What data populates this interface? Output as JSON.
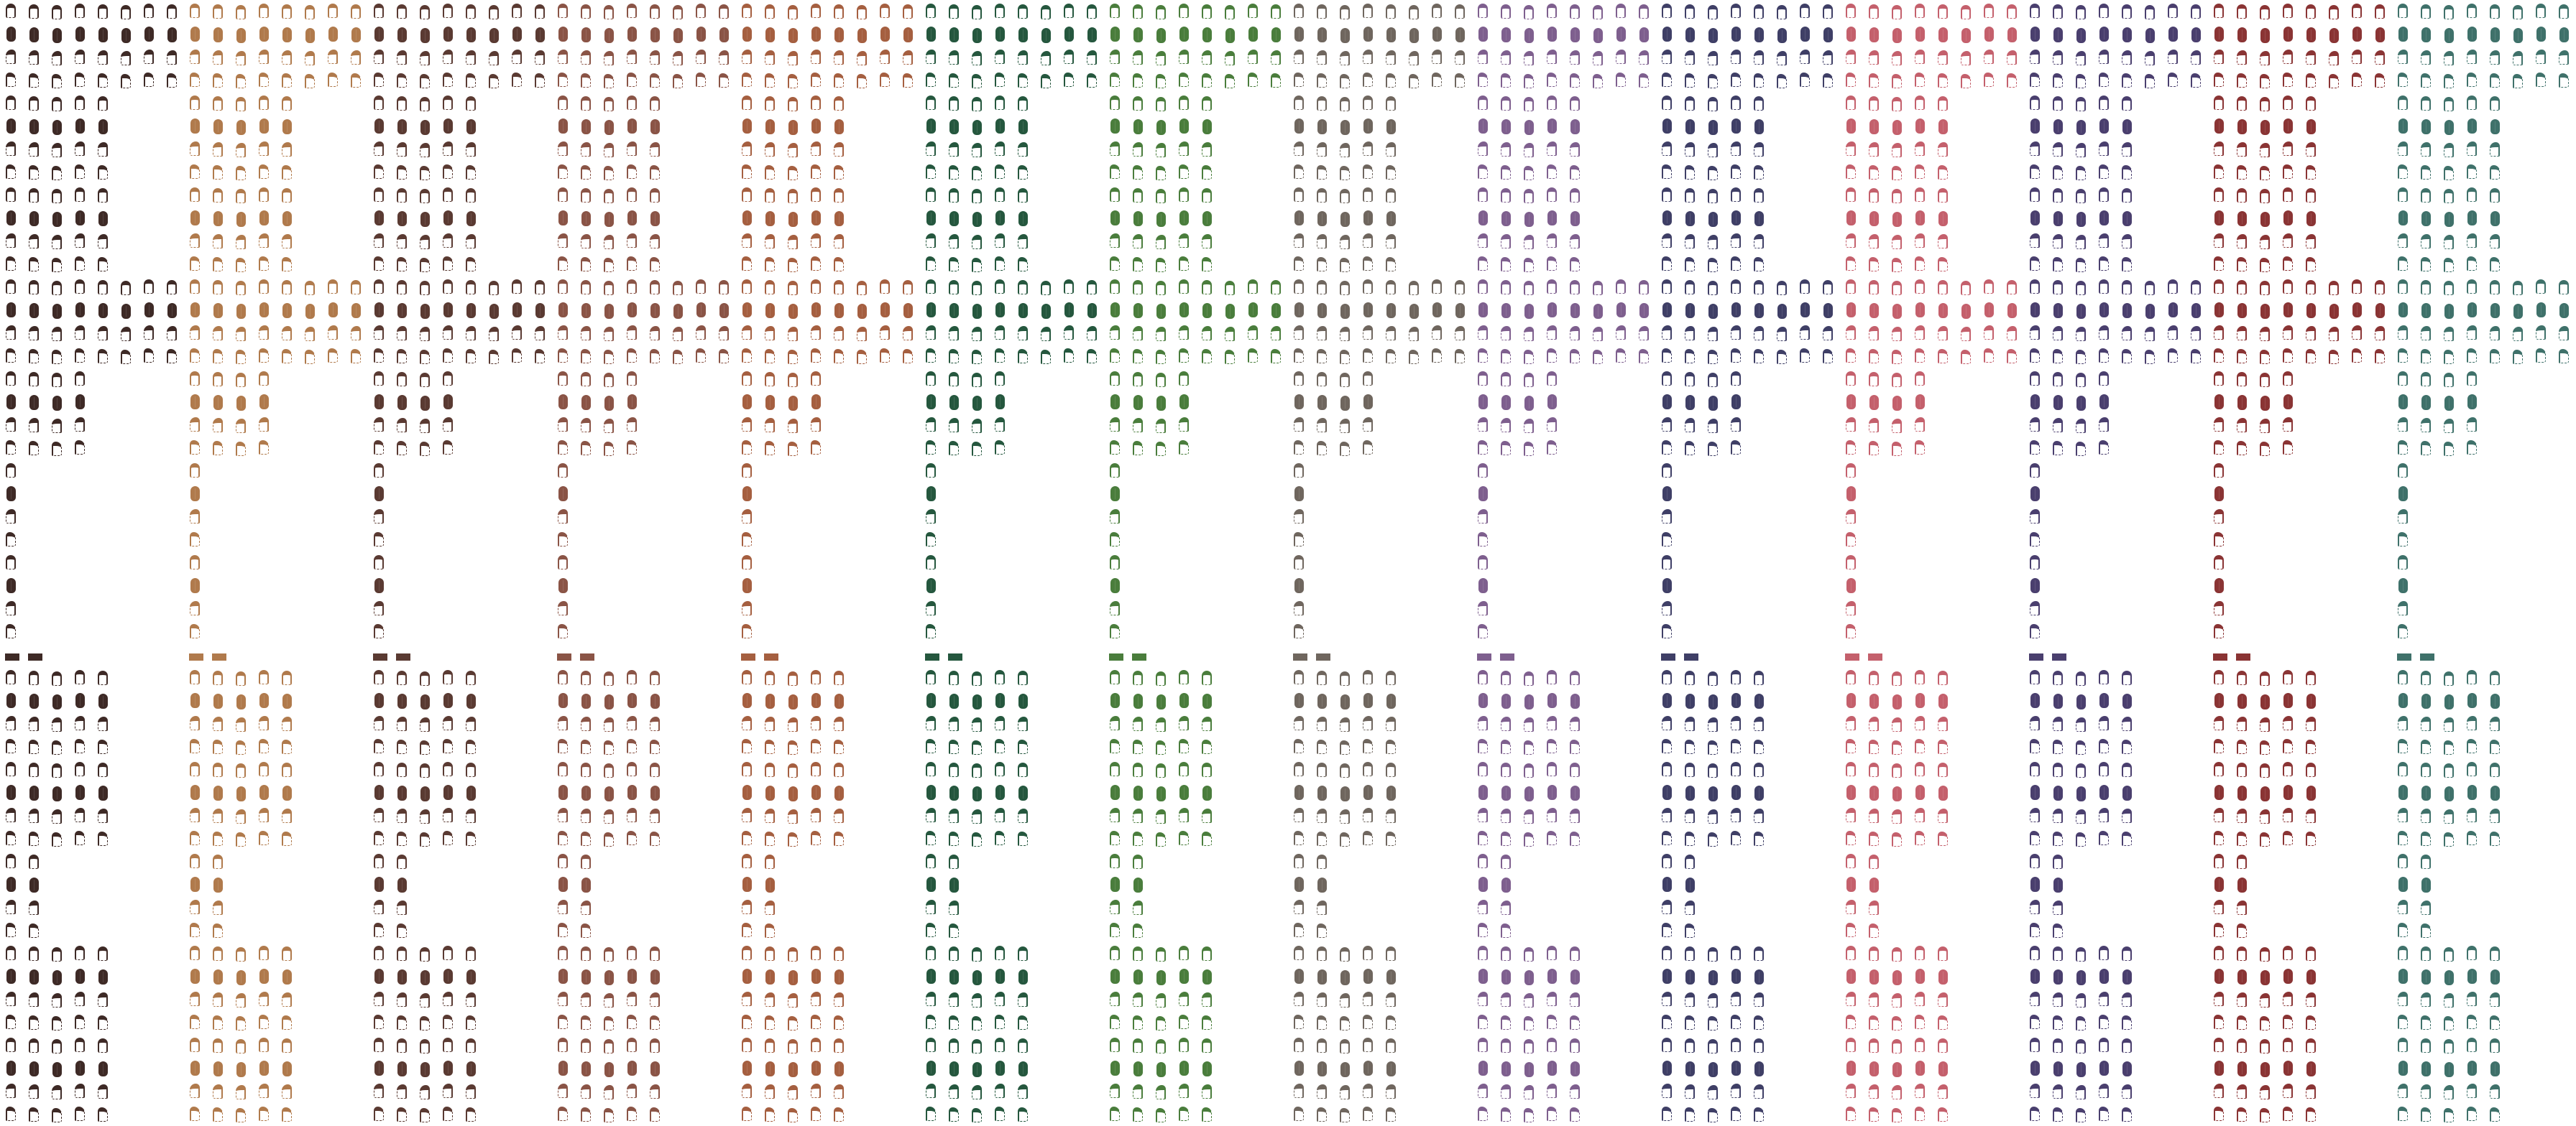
{
  "sheet": {
    "type": "hair sprite sheet",
    "cell_size_px": 32,
    "frames_per_row_max": 8,
    "color_variants": [
      {
        "name": "dark-brown",
        "color": "#3e2a26"
      },
      {
        "name": "tan",
        "color": "#b07a4c"
      },
      {
        "name": "chestnut",
        "color": "#5a3a32"
      },
      {
        "name": "brown",
        "color": "#8a5446"
      },
      {
        "name": "auburn",
        "color": "#a55f40"
      },
      {
        "name": "dark-green",
        "color": "#25573e"
      },
      {
        "name": "green",
        "color": "#4a7d3c"
      },
      {
        "name": "gray",
        "color": "#6f665e"
      },
      {
        "name": "purple",
        "color": "#7e5f8e"
      },
      {
        "name": "navy",
        "color": "#3f3f66"
      },
      {
        "name": "pink",
        "color": "#c4606c"
      },
      {
        "name": "indigo",
        "color": "#4a3f6e"
      },
      {
        "name": "red",
        "color": "#8a3434"
      },
      {
        "name": "teal",
        "color": "#3f716a"
      }
    ],
    "rows": [
      {
        "frames": 8,
        "view": "front"
      },
      {
        "frames": 8,
        "view": "back"
      },
      {
        "frames": 8,
        "view": "side"
      },
      {
        "frames": 8,
        "view": "side-alt"
      },
      {
        "frames": 5,
        "view": "front"
      },
      {
        "frames": 5,
        "view": "back"
      },
      {
        "frames": 5,
        "view": "side"
      },
      {
        "frames": 5,
        "view": "side-alt"
      },
      {
        "frames": 5,
        "view": "front"
      },
      {
        "frames": 5,
        "view": "back"
      },
      {
        "frames": 5,
        "view": "side"
      },
      {
        "frames": 5,
        "view": "side-alt"
      },
      {
        "frames": 8,
        "view": "front"
      },
      {
        "frames": 8,
        "view": "back"
      },
      {
        "frames": 8,
        "view": "side"
      },
      {
        "frames": 8,
        "view": "side-alt"
      },
      {
        "frames": 4,
        "view": "front"
      },
      {
        "frames": 4,
        "view": "back"
      },
      {
        "frames": 4,
        "view": "side"
      },
      {
        "frames": 4,
        "view": "side-alt"
      },
      {
        "frames": 1,
        "view": "front"
      },
      {
        "frames": 1,
        "view": "back"
      },
      {
        "frames": 1,
        "view": "side"
      },
      {
        "frames": 1,
        "view": "side-alt"
      },
      {
        "frames": 1,
        "view": "front"
      },
      {
        "frames": 1,
        "view": "back"
      },
      {
        "frames": 1,
        "view": "side"
      },
      {
        "frames": 1,
        "view": "side-alt"
      },
      {
        "frames": 2,
        "view": "hook"
      },
      {
        "frames": 5,
        "view": "front"
      },
      {
        "frames": 5,
        "view": "back"
      },
      {
        "frames": 5,
        "view": "side"
      },
      {
        "frames": 5,
        "view": "side-alt"
      },
      {
        "frames": 5,
        "view": "front"
      },
      {
        "frames": 5,
        "view": "back"
      },
      {
        "frames": 5,
        "view": "side"
      },
      {
        "frames": 5,
        "view": "side-alt"
      },
      {
        "frames": 2,
        "view": "front"
      },
      {
        "frames": 2,
        "view": "back"
      },
      {
        "frames": 2,
        "view": "side"
      },
      {
        "frames": 2,
        "view": "side-alt"
      },
      {
        "frames": 5,
        "view": "front"
      },
      {
        "frames": 5,
        "view": "back"
      },
      {
        "frames": 5,
        "view": "side"
      },
      {
        "frames": 5,
        "view": "side-alt"
      },
      {
        "frames": 5,
        "view": "front"
      },
      {
        "frames": 5,
        "view": "back"
      },
      {
        "frames": 5,
        "view": "side"
      },
      {
        "frames": 5,
        "view": "side-alt"
      }
    ]
  }
}
